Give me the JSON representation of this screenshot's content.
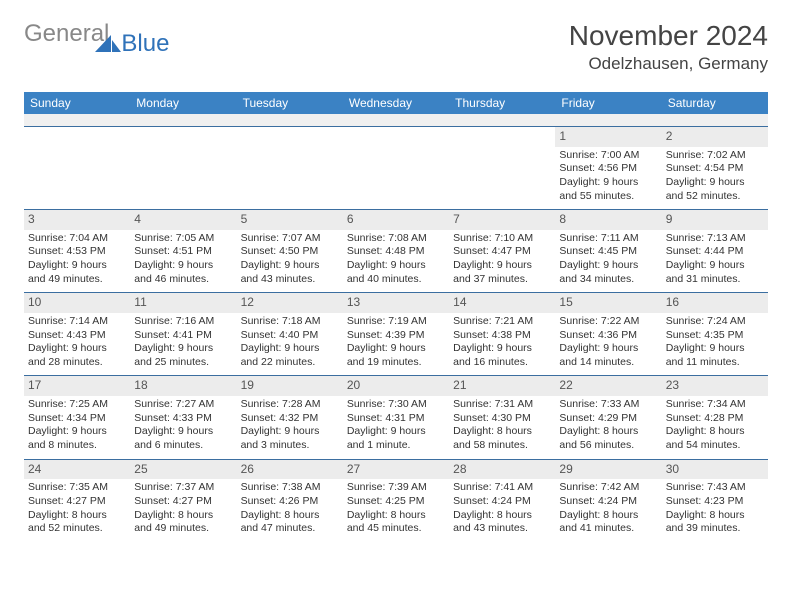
{
  "logo": {
    "general": "General",
    "blue": "Blue"
  },
  "title": "November 2024",
  "location": "Odelzhausen, Germany",
  "colors": {
    "header_bg": "#3b82c4",
    "header_text": "#ffffff",
    "daynum_bg": "#ececec",
    "rule": "#3b6ea0",
    "logo_blue": "#2f72b9",
    "logo_gray": "#888888"
  },
  "day_headers": [
    "Sunday",
    "Monday",
    "Tuesday",
    "Wednesday",
    "Thursday",
    "Friday",
    "Saturday"
  ],
  "weeks": [
    [
      null,
      null,
      null,
      null,
      null,
      {
        "n": "1",
        "sr": "Sunrise: 7:00 AM",
        "ss": "Sunset: 4:56 PM",
        "d1": "Daylight: 9 hours",
        "d2": "and 55 minutes."
      },
      {
        "n": "2",
        "sr": "Sunrise: 7:02 AM",
        "ss": "Sunset: 4:54 PM",
        "d1": "Daylight: 9 hours",
        "d2": "and 52 minutes."
      }
    ],
    [
      {
        "n": "3",
        "sr": "Sunrise: 7:04 AM",
        "ss": "Sunset: 4:53 PM",
        "d1": "Daylight: 9 hours",
        "d2": "and 49 minutes."
      },
      {
        "n": "4",
        "sr": "Sunrise: 7:05 AM",
        "ss": "Sunset: 4:51 PM",
        "d1": "Daylight: 9 hours",
        "d2": "and 46 minutes."
      },
      {
        "n": "5",
        "sr": "Sunrise: 7:07 AM",
        "ss": "Sunset: 4:50 PM",
        "d1": "Daylight: 9 hours",
        "d2": "and 43 minutes."
      },
      {
        "n": "6",
        "sr": "Sunrise: 7:08 AM",
        "ss": "Sunset: 4:48 PM",
        "d1": "Daylight: 9 hours",
        "d2": "and 40 minutes."
      },
      {
        "n": "7",
        "sr": "Sunrise: 7:10 AM",
        "ss": "Sunset: 4:47 PM",
        "d1": "Daylight: 9 hours",
        "d2": "and 37 minutes."
      },
      {
        "n": "8",
        "sr": "Sunrise: 7:11 AM",
        "ss": "Sunset: 4:45 PM",
        "d1": "Daylight: 9 hours",
        "d2": "and 34 minutes."
      },
      {
        "n": "9",
        "sr": "Sunrise: 7:13 AM",
        "ss": "Sunset: 4:44 PM",
        "d1": "Daylight: 9 hours",
        "d2": "and 31 minutes."
      }
    ],
    [
      {
        "n": "10",
        "sr": "Sunrise: 7:14 AM",
        "ss": "Sunset: 4:43 PM",
        "d1": "Daylight: 9 hours",
        "d2": "and 28 minutes."
      },
      {
        "n": "11",
        "sr": "Sunrise: 7:16 AM",
        "ss": "Sunset: 4:41 PM",
        "d1": "Daylight: 9 hours",
        "d2": "and 25 minutes."
      },
      {
        "n": "12",
        "sr": "Sunrise: 7:18 AM",
        "ss": "Sunset: 4:40 PM",
        "d1": "Daylight: 9 hours",
        "d2": "and 22 minutes."
      },
      {
        "n": "13",
        "sr": "Sunrise: 7:19 AM",
        "ss": "Sunset: 4:39 PM",
        "d1": "Daylight: 9 hours",
        "d2": "and 19 minutes."
      },
      {
        "n": "14",
        "sr": "Sunrise: 7:21 AM",
        "ss": "Sunset: 4:38 PM",
        "d1": "Daylight: 9 hours",
        "d2": "and 16 minutes."
      },
      {
        "n": "15",
        "sr": "Sunrise: 7:22 AM",
        "ss": "Sunset: 4:36 PM",
        "d1": "Daylight: 9 hours",
        "d2": "and 14 minutes."
      },
      {
        "n": "16",
        "sr": "Sunrise: 7:24 AM",
        "ss": "Sunset: 4:35 PM",
        "d1": "Daylight: 9 hours",
        "d2": "and 11 minutes."
      }
    ],
    [
      {
        "n": "17",
        "sr": "Sunrise: 7:25 AM",
        "ss": "Sunset: 4:34 PM",
        "d1": "Daylight: 9 hours",
        "d2": "and 8 minutes."
      },
      {
        "n": "18",
        "sr": "Sunrise: 7:27 AM",
        "ss": "Sunset: 4:33 PM",
        "d1": "Daylight: 9 hours",
        "d2": "and 6 minutes."
      },
      {
        "n": "19",
        "sr": "Sunrise: 7:28 AM",
        "ss": "Sunset: 4:32 PM",
        "d1": "Daylight: 9 hours",
        "d2": "and 3 minutes."
      },
      {
        "n": "20",
        "sr": "Sunrise: 7:30 AM",
        "ss": "Sunset: 4:31 PM",
        "d1": "Daylight: 9 hours",
        "d2": "and 1 minute."
      },
      {
        "n": "21",
        "sr": "Sunrise: 7:31 AM",
        "ss": "Sunset: 4:30 PM",
        "d1": "Daylight: 8 hours",
        "d2": "and 58 minutes."
      },
      {
        "n": "22",
        "sr": "Sunrise: 7:33 AM",
        "ss": "Sunset: 4:29 PM",
        "d1": "Daylight: 8 hours",
        "d2": "and 56 minutes."
      },
      {
        "n": "23",
        "sr": "Sunrise: 7:34 AM",
        "ss": "Sunset: 4:28 PM",
        "d1": "Daylight: 8 hours",
        "d2": "and 54 minutes."
      }
    ],
    [
      {
        "n": "24",
        "sr": "Sunrise: 7:35 AM",
        "ss": "Sunset: 4:27 PM",
        "d1": "Daylight: 8 hours",
        "d2": "and 52 minutes."
      },
      {
        "n": "25",
        "sr": "Sunrise: 7:37 AM",
        "ss": "Sunset: 4:27 PM",
        "d1": "Daylight: 8 hours",
        "d2": "and 49 minutes."
      },
      {
        "n": "26",
        "sr": "Sunrise: 7:38 AM",
        "ss": "Sunset: 4:26 PM",
        "d1": "Daylight: 8 hours",
        "d2": "and 47 minutes."
      },
      {
        "n": "27",
        "sr": "Sunrise: 7:39 AM",
        "ss": "Sunset: 4:25 PM",
        "d1": "Daylight: 8 hours",
        "d2": "and 45 minutes."
      },
      {
        "n": "28",
        "sr": "Sunrise: 7:41 AM",
        "ss": "Sunset: 4:24 PM",
        "d1": "Daylight: 8 hours",
        "d2": "and 43 minutes."
      },
      {
        "n": "29",
        "sr": "Sunrise: 7:42 AM",
        "ss": "Sunset: 4:24 PM",
        "d1": "Daylight: 8 hours",
        "d2": "and 41 minutes."
      },
      {
        "n": "30",
        "sr": "Sunrise: 7:43 AM",
        "ss": "Sunset: 4:23 PM",
        "d1": "Daylight: 8 hours",
        "d2": "and 39 minutes."
      }
    ]
  ]
}
